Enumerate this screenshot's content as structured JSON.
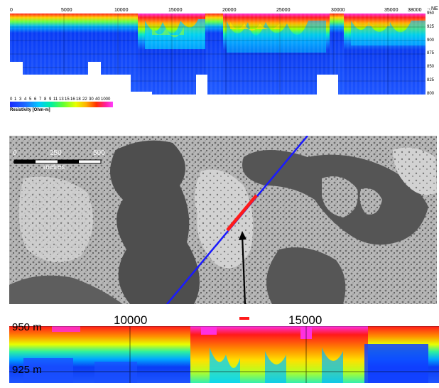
{
  "top_section": {
    "x_ticks": [
      "0",
      "5000",
      "10000",
      "15000",
      "20000",
      "25000",
      "30000",
      "35000",
      "38000"
    ],
    "x_axis_unit": "→NE",
    "y_ticks": [
      "950",
      "925",
      "900",
      "875",
      "850",
      "825",
      "800"
    ],
    "color_scale_labels": [
      "0",
      "1",
      "3",
      "4",
      "5",
      "6",
      "7",
      "8",
      "9",
      "11",
      "13",
      "15",
      "16",
      "18",
      "22",
      "30",
      "40",
      "1000"
    ],
    "colorbar_title": "Resistivity [Ohm-m]"
  },
  "map": {
    "scale_labels": [
      "0",
      "250",
      "500"
    ],
    "scale_unit": "metres"
  },
  "bottom_section": {
    "x_labels": [
      "10000",
      "15000"
    ],
    "y_labels": [
      "950 m",
      "925 m"
    ]
  },
  "colors": {
    "profile_line": "#1a1aff",
    "highlight_segment": "#ff1a1a",
    "arrow": "#000000"
  }
}
